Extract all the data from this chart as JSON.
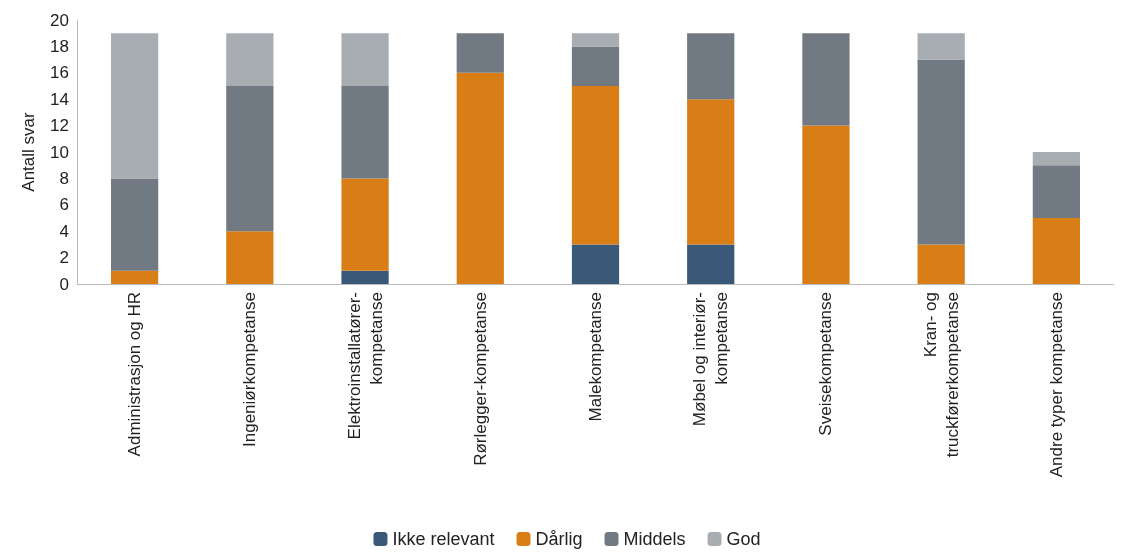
{
  "chart_data": {
    "type": "bar",
    "stacked": true,
    "ylabel": "Antall svar",
    "categories": [
      "Administrasjon og HR",
      "Ingeniørkompetanse",
      "Elektroinstallatører-\nkompetanse",
      "Rørlegger-kompetanse",
      "Malekompetanse",
      "Møbel og interiør-\nkompetanse",
      "Sveisekompetanse",
      "Kran- og\ntruckførerkompetanse",
      "Andre typer kompetanse"
    ],
    "series": [
      {
        "name": "Ikke relevant",
        "color": "#3a5878",
        "values": [
          0,
          0,
          1,
          0,
          3,
          3,
          0,
          0,
          0
        ]
      },
      {
        "name": "Dårlig",
        "color": "#d97e17",
        "values": [
          1,
          4,
          7,
          16,
          12,
          11,
          12,
          3,
          5
        ]
      },
      {
        "name": "Middels",
        "color": "#717a82",
        "values": [
          7,
          11,
          7,
          3,
          3,
          5,
          7,
          14,
          4
        ]
      },
      {
        "name": "God",
        "color": "#a8adb2",
        "values": [
          11,
          4,
          4,
          0,
          1,
          0,
          0,
          2,
          1
        ]
      }
    ],
    "ylim": [
      0,
      20
    ],
    "yticks": [
      0,
      2,
      4,
      6,
      8,
      10,
      12,
      14,
      16,
      18,
      20
    ],
    "grid": false,
    "legend": "bottom"
  }
}
